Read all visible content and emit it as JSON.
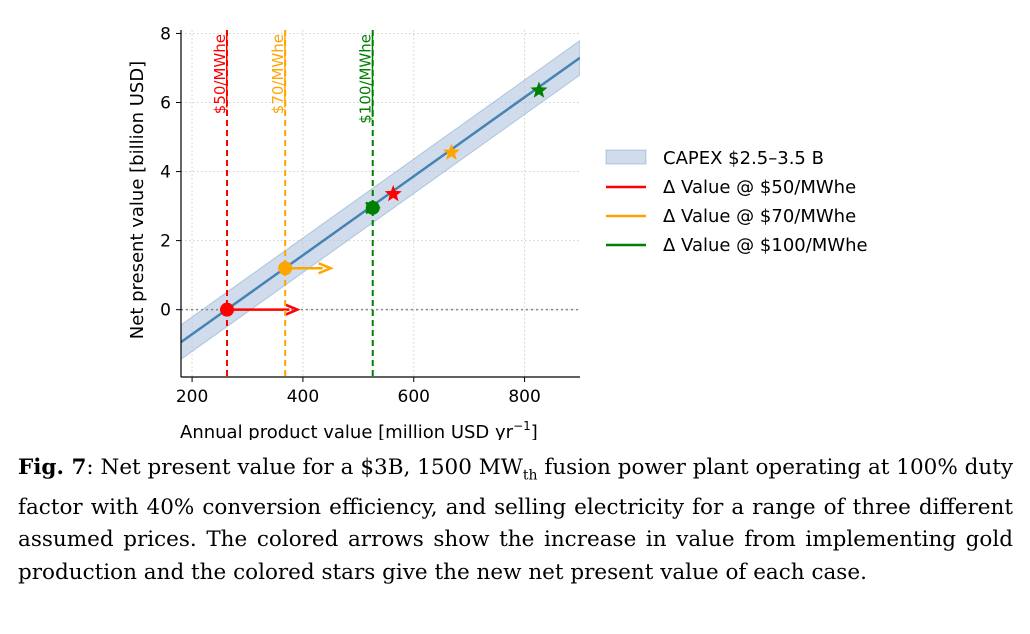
{
  "chart_data": {
    "type": "line",
    "xlabel": "Annual product value  [million USD yr",
    "xlabel_sup": "−1",
    "xlabel_end": "]",
    "ylabel": "Net present value  [billion USD]",
    "xlim": [
      180,
      900
    ],
    "ylim": [
      -1.95,
      8.1
    ],
    "xticks": [
      200,
      400,
      600,
      800
    ],
    "yticks": [
      0,
      2,
      4,
      6,
      8
    ],
    "grid": true,
    "legend_position": "right",
    "npv_line": {
      "slope": 0.01144,
      "intercept": -3.0
    },
    "band_halfwidth": 0.5,
    "zero_reference_line": 0,
    "series": [
      {
        "name": "Δ Value @ $50/MWhe",
        "label": "$50/MWhe",
        "color": "#ff0000",
        "price_x": 263,
        "start": [
          263,
          0.0
        ],
        "arrow_end_x": 390,
        "star": [
          563,
          3.35
        ]
      },
      {
        "name": "Δ Value @ $70/MWhe",
        "label": "$70/MWhe",
        "color": "#ffa500",
        "price_x": 368,
        "start": [
          368,
          1.2
        ],
        "arrow_end_x": 450,
        "star": [
          668,
          4.55
        ]
      },
      {
        "name": "Δ Value @ $100/MWhe",
        "label": "$100/MWhe",
        "color": "#008000",
        "price_x": 526,
        "start": [
          526,
          2.95
        ],
        "arrow_end_x": 535,
        "star": [
          826,
          6.35
        ]
      }
    ],
    "band_legend": "CAPEX $2.5–3.5 B",
    "line_color": "#4682b4",
    "band_color": "#b0c4de"
  },
  "caption": {
    "label": "Fig. 7",
    "text_before": ": Net present value for a $3B, 1500 MW",
    "subscript": "th",
    "text_after": " fusion power plant operating at 100% duty factor with 40% conversion efficiency, and selling electricity for a range of three different assumed prices. The colored arrows show the increase in value from implementing gold production and the colored stars give the new net present value of each case."
  }
}
